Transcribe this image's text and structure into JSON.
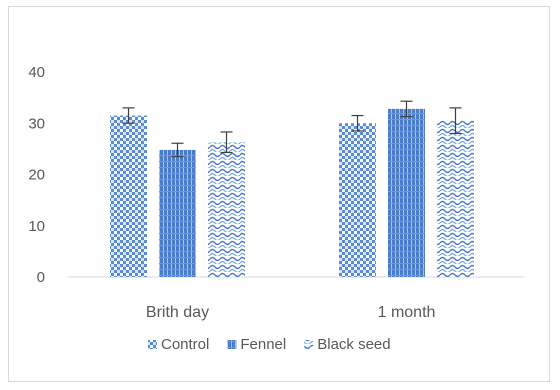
{
  "chart_data": {
    "type": "bar",
    "categories": [
      "Brith day",
      "1 month"
    ],
    "series": [
      {
        "name": "Control",
        "values": [
          31.5,
          30.0
        ],
        "errors": [
          1.5,
          1.5
        ],
        "color": "#4472c4",
        "pattern": "checker"
      },
      {
        "name": "Fennel",
        "values": [
          24.8,
          32.8
        ],
        "errors": [
          1.3,
          1.5
        ],
        "color": "#4472c4",
        "pattern": "vertical"
      },
      {
        "name": "Black seed",
        "values": [
          26.3,
          30.5
        ],
        "errors": [
          2.0,
          2.5
        ],
        "color": "#4472c4",
        "pattern": "wave"
      }
    ],
    "title": "",
    "xlabel": "",
    "ylabel": "",
    "ylim": [
      0,
      40
    ],
    "yticks": [
      "0",
      "10",
      "20",
      "30",
      "40"
    ],
    "grid": false,
    "legend_position": "bottom"
  }
}
